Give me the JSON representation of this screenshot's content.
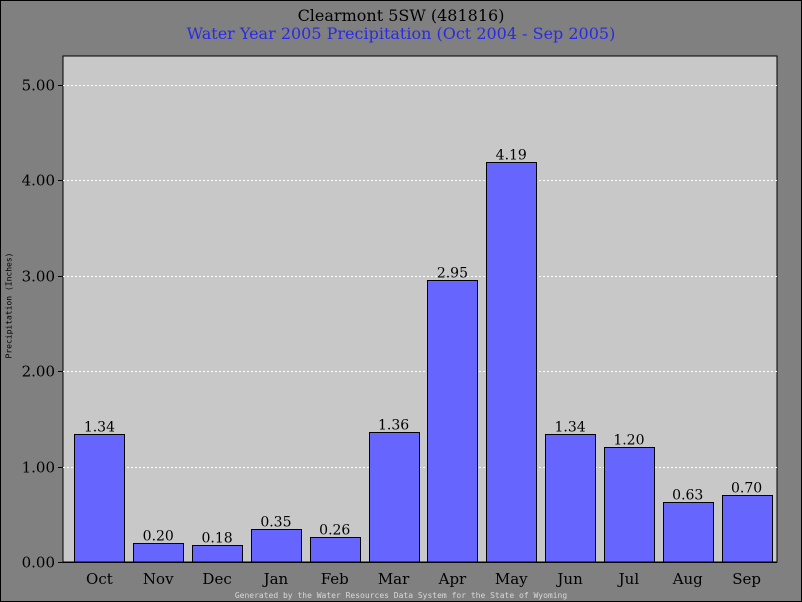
{
  "chart_data": {
    "type": "bar",
    "title": "Clearmont 5SW (481816)",
    "subtitle": "Water Year 2005 Precipitation (Oct 2004 - Sep 2005)",
    "ylabel": "Precipitation (Inches)",
    "xlabel": "",
    "categories": [
      "Oct",
      "Nov",
      "Dec",
      "Jan",
      "Feb",
      "Mar",
      "Apr",
      "May",
      "Jun",
      "Jul",
      "Aug",
      "Sep"
    ],
    "values": [
      1.34,
      0.2,
      0.18,
      0.35,
      0.26,
      1.36,
      2.95,
      4.19,
      1.34,
      1.2,
      0.63,
      0.7
    ],
    "data_labels": [
      "1.34",
      "0.20",
      "0.18",
      "0.35",
      "0.26",
      "1.36",
      "2.95",
      "4.19",
      "1.34",
      "1.20",
      "0.63",
      "0.70"
    ],
    "y_ticks": [
      0,
      1,
      2,
      3,
      4,
      5
    ],
    "y_tick_labels": [
      "0.00",
      "1.00",
      "2.00",
      "3.00",
      "4.00",
      "5.00"
    ],
    "ylim": [
      0,
      5.3
    ],
    "grid": true,
    "legend": "none",
    "colors": {
      "bar": "#6666ff",
      "plot_background": "#c8c8c8",
      "page_background": "#808080",
      "subtitle": "#2a2ae6",
      "grid": "#ffffff"
    }
  },
  "footer": "Generated by the Water Resources Data System for the State of Wyoming"
}
